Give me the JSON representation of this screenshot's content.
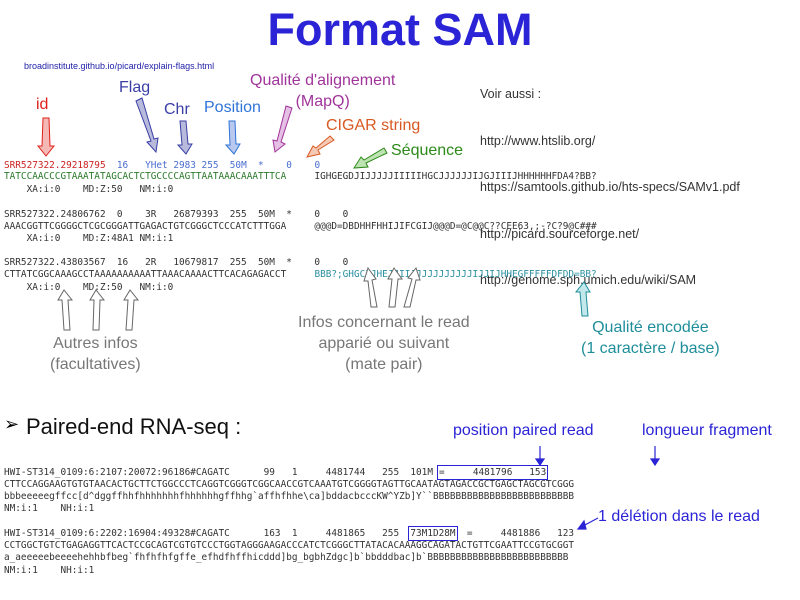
{
  "title": "Format SAM",
  "picard_link": "broadinstitute.github.io/picard/explain-flags.html",
  "see_also": [
    "Voir aussi :",
    "http://www.htslib.org/",
    "https://samtools.github.io/hts-specs/SAMv1.pdf",
    "http://picard.sourceforge.net/",
    "http://genome.sph.umich.edu/wiki/SAM"
  ],
  "labels": {
    "id": "id",
    "flag": "Flag",
    "chr": "Chr",
    "position": "Position",
    "mapq": "Qualité d'alignement\n(MapQ)",
    "cigar": "CIGAR string",
    "sequence": "Séquence",
    "autres_infos": "Autres infos\n(facultatives)",
    "mate_pair": "Infos concernant le read\napparié ou suivant\n(mate pair)",
    "qualite": "Qualité encodée\n(1 caractère / base)"
  },
  "records": [
    {
      "id": "SRR527322.29218795",
      "fields": "  16   YHet 2983 255  50M  *    0    0",
      "seq": "TATCCAACCCGTAAATATAGCACTCTGCCCCAGTTAATAAACAAATTTCA",
      "qual": "     IGHGEGDJIJJJJJIIIIIHGCJJJJJJIJGJIIIJHHHHHHFDA4?BB?",
      "tags": "    XA:i:0    MD:Z:50   NM:i:0"
    },
    {
      "line1": "SRR527322.24806762  0    3R   26879393  255  50M  *    0    0",
      "line2": "AAACGGTTCGGGGCTCGCGGGATTGAGACTGTCGGGCTCCCATCTTTGGA     @@@D=DBDHHFHHIJIFCGIJ@@@D=@C@@C??CEE63,;-?C?9@C###",
      "line3": "    XA:i:0    MD:Z:48A1 NM:i:1"
    },
    {
      "line1": "SRR527322.43803567  16   2R   10679817  255  50M  *    0    0",
      "seq": "CTTATCGGCAAAGCCTAAAAAAAAAATTAAACAAAACTTCACAGAGACCT     ",
      "qual": "BBB?;GHGCIJHEJJIIJJJJJJJJJJJIJJIJHHEGFFFFFDFDD=BB?",
      "line3": "    XA:i:0    MD:Z:50   NM:i:0"
    }
  ],
  "paired_end": {
    "title": "Paired-end RNA-seq :",
    "label_position": "position paired read",
    "label_longueur": "longueur fragment",
    "label_deletion": "1 délétion dans le read",
    "read1": {
      "line1": "HWI-ST314_0109:6:2107:20072:96186#CAGATC      99   1     4481744   255  101M",
      "boxed": "=     4481796   153",
      "line2": "CTTCCAGGAAGTGTGTAACACTGCTTCTGGCCCTCAGGTCGGGTCGGCAACCGTCAAATGTCGGGGTAGTTGCAATAGTAGACCGCTGAGCTAGCGTCGGG",
      "line3": "bbbeeeeegffcc[d^dggffhhfhhhhhhhfhhhhhhgffhhg`affhfhhe\\ca]bddacbcccKW^YZb]Y``BBBBBBBBBBBBBBBBBBBBBBBBB",
      "line4": "NM:i:1    NH:i:1"
    },
    "read2": {
      "prefix": "HWI-ST314_0109:6:2202:16904:49328#CAGATC      163  1     4481865   255  ",
      "boxed": "73M1D28M",
      "suffix": "  =     4481886   123",
      "line2": "CCTGGCTGTCTGAGAGGTTCACTCCGCAGTCGTGTCCCTGGTAGGGAAGACCCATCTCGGGCTTATACACAAAGGCAGATACTGTTCGAATTCCGTGCGGT",
      "line3": "a_aeeeeebeeeehehhbfbeg`fhfhfhfgffe_efhdfhffhicddd]bg_bgbhZdgc]b`bbdddbac]b`BBBBBBBBBBBBBBBBBBBBBBBBB",
      "line4": "NM:i:1    NH:i:1"
    }
  },
  "colors": {
    "title": "#2b24d6",
    "id": "#e0201a",
    "flag": "#3a3fa6",
    "position": "#2f74d8",
    "mapq": "#a0349a",
    "cigar": "#d85a22",
    "sequence": "#2b8a18",
    "quality": "#1f8e9a"
  }
}
